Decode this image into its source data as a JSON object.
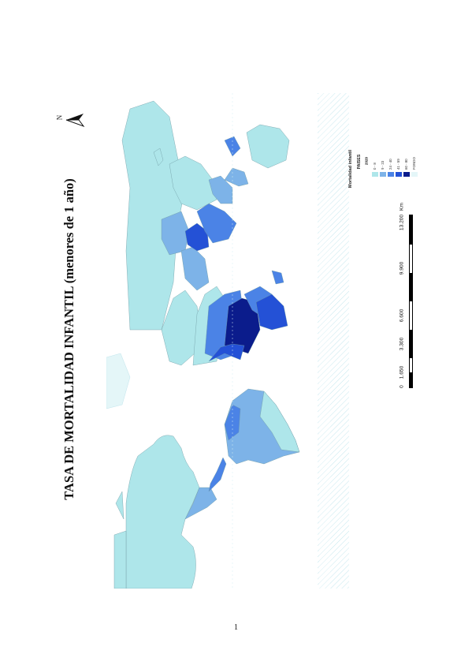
{
  "title": "TASA DE MORTALIDAD INFANTIL (menores de 1 año)",
  "north_label": "N",
  "legend": {
    "title": "Mortalidad infantil",
    "subtitle": "PAISES",
    "year": "2020",
    "items": [
      {
        "label": "0 - 8",
        "color": "#aee6ea"
      },
      {
        "label": "9 - 23",
        "color": "#7db3e8"
      },
      {
        "label": "24 - 40",
        "color": "#4b83e6"
      },
      {
        "label": "41 - 59",
        "color": "#2451d6"
      },
      {
        "label": "60 - 80",
        "color": "#0b1c8c"
      },
      {
        "label": "FONDO",
        "color": "#e4f6f8"
      }
    ]
  },
  "scale_bar": {
    "labels": [
      "0",
      "1.650",
      "3.300",
      "6.600",
      "9.900",
      "13.200"
    ],
    "unit": "Km"
  },
  "colors": {
    "ocean_hatch": "#bfe4ec",
    "land_base": "#aee6ea",
    "border": "#6f9aa3"
  },
  "page_number": "1"
}
